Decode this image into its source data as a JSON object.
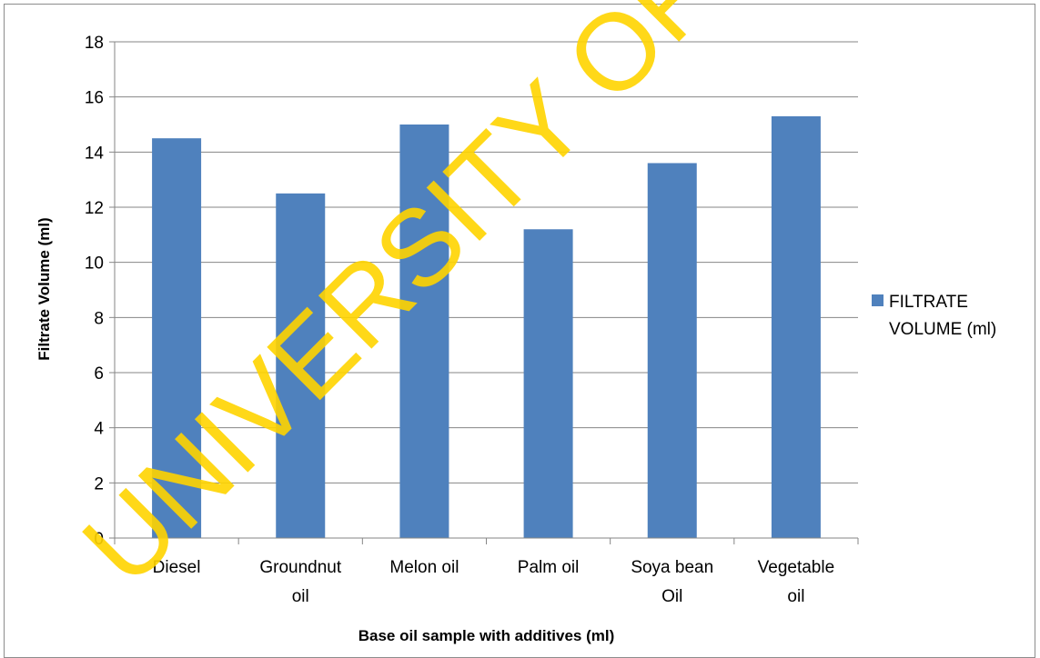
{
  "chart_data": {
    "type": "bar",
    "categories": [
      [
        "Diesel"
      ],
      [
        "Groundnut",
        "oil"
      ],
      [
        "Melon oil"
      ],
      [
        "Palm oil"
      ],
      [
        "Soya bean",
        "Oil"
      ],
      [
        "Vegetable",
        "oil"
      ]
    ],
    "series": [
      {
        "name": "FILTRATE VOLUME (ml)",
        "values": [
          14.5,
          12.5,
          15.0,
          11.2,
          13.6,
          15.3
        ]
      }
    ],
    "title": "",
    "xlabel": "Base oil sample with additives (ml)",
    "ylabel": "Filtrate Volume (ml)",
    "ylim": [
      0,
      18
    ],
    "yticks": [
      0,
      2,
      4,
      6,
      8,
      10,
      12,
      14,
      16,
      18
    ],
    "grid": true,
    "legend_position": "right",
    "legend_lines": [
      "FILTRATE",
      "VOLUME (ml)"
    ],
    "bar_color": "#4f81bd"
  },
  "watermark": "UNIVERSITY OF IBADAN",
  "watermark_color": "#ffd400"
}
